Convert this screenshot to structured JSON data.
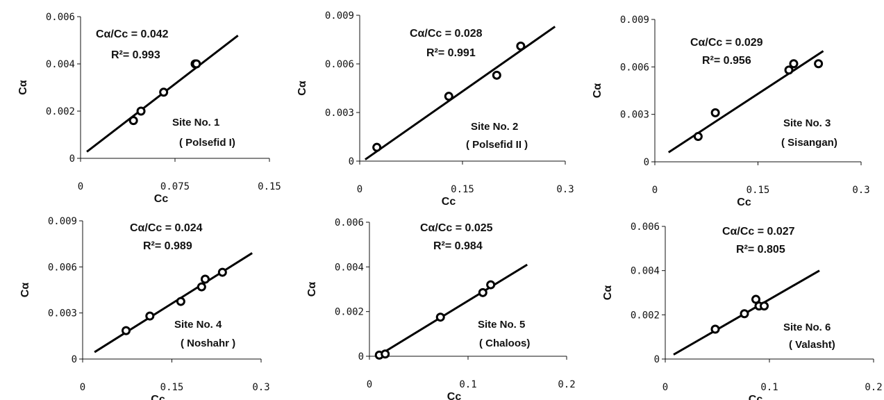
{
  "chart_data": [
    {
      "type": "scatter",
      "site_label": "Site No.  1",
      "site_name": "( Polsefid I)",
      "xlabel": "Cc",
      "ylabel": "Cα",
      "xlim": [
        0,
        0.15
      ],
      "ylim": [
        0,
        0.006
      ],
      "xticks": [
        "0",
        "0.075",
        "0.15"
      ],
      "xtick_values": [
        0,
        0.075,
        0.15
      ],
      "yticks": [
        "0",
        "0.002",
        "0.004",
        "0.006"
      ],
      "ytick_values": [
        0,
        0.002,
        0.004,
        0.006
      ],
      "ratio_label": "Cα/Cc = 0.042",
      "r2_label": "R²= 0.993",
      "points": [
        [
          0.042,
          0.0016
        ],
        [
          0.048,
          0.002
        ],
        [
          0.066,
          0.0028
        ],
        [
          0.091,
          0.004
        ],
        [
          0.092,
          0.004
        ]
      ],
      "fit_line": [
        [
          0.005,
          0.00028
        ],
        [
          0.125,
          0.0052
        ]
      ]
    },
    {
      "type": "scatter",
      "site_label": "Site No. 2",
      "site_name": "( Polsefid II )",
      "xlabel": "Cc",
      "ylabel": "Cα",
      "xlim": [
        0,
        0.3
      ],
      "ylim": [
        0,
        0.009
      ],
      "xticks": [
        "0",
        "0.15",
        "0.3"
      ],
      "xtick_values": [
        0,
        0.15,
        0.3
      ],
      "yticks": [
        "0",
        "0.003",
        "0.006",
        "0.009"
      ],
      "ytick_values": [
        0,
        0.003,
        0.006,
        0.009
      ],
      "ratio_label": "Cα/Cc = 0.028",
      "r2_label": "R²= 0.991",
      "points": [
        [
          0.025,
          0.00085
        ],
        [
          0.13,
          0.004
        ],
        [
          0.2,
          0.0053
        ],
        [
          0.235,
          0.0071
        ]
      ],
      "fit_line": [
        [
          0.008,
          0.0001
        ],
        [
          0.285,
          0.0083
        ]
      ]
    },
    {
      "type": "scatter",
      "site_label": "Site No. 3",
      "site_name": "( Sisangan)",
      "xlabel": "Cc",
      "ylabel": "Cα",
      "xlim": [
        0,
        0.3
      ],
      "ylim": [
        0,
        0.009
      ],
      "xticks": [
        "0",
        "0.15",
        "0.3"
      ],
      "xtick_values": [
        0,
        0.15,
        0.3
      ],
      "yticks": [
        "0",
        "0.003",
        "0.006",
        "0.009"
      ],
      "ytick_values": [
        0,
        0.003,
        0.006,
        0.009
      ],
      "ratio_label": "Cα/Cc = 0.029",
      "r2_label": "R²= 0.956",
      "points": [
        [
          0.063,
          0.0016
        ],
        [
          0.088,
          0.0031
        ],
        [
          0.195,
          0.0058
        ],
        [
          0.202,
          0.0062
        ],
        [
          0.238,
          0.0062
        ]
      ],
      "fit_line": [
        [
          0.02,
          0.0006
        ],
        [
          0.245,
          0.007
        ]
      ]
    },
    {
      "type": "scatter",
      "site_label": "Site No. 4",
      "site_name": "( Noshahr )",
      "xlabel": "Cc",
      "ylabel": "Cα",
      "xlim": [
        0,
        0.3
      ],
      "ylim": [
        0,
        0.009
      ],
      "xticks": [
        "0",
        "0.15",
        "0.3"
      ],
      "xtick_values": [
        0,
        0.15,
        0.3
      ],
      "yticks": [
        "0",
        "0.003",
        "0.006",
        "0.009"
      ],
      "ytick_values": [
        0,
        0.003,
        0.006,
        0.009
      ],
      "ratio_label": "Cα/Cc = 0.024",
      "r2_label": "R²= 0.989",
      "points": [
        [
          0.073,
          0.00185
        ],
        [
          0.113,
          0.0028
        ],
        [
          0.165,
          0.00375
        ],
        [
          0.2,
          0.0047
        ],
        [
          0.206,
          0.0052
        ],
        [
          0.235,
          0.00565
        ]
      ],
      "fit_line": [
        [
          0.02,
          0.00045
        ],
        [
          0.285,
          0.0069
        ]
      ]
    },
    {
      "type": "scatter",
      "site_label": "Site No. 5",
      "site_name": "( Chaloos)",
      "xlabel": "Cc",
      "ylabel": "Cα",
      "xlim": [
        0,
        0.2
      ],
      "ylim": [
        0,
        0.006
      ],
      "xticks": [
        "0",
        "0.1",
        "0.2"
      ],
      "xtick_values": [
        0,
        0.1,
        0.2
      ],
      "yticks": [
        "0",
        "0.002",
        "0.004",
        "0.006"
      ],
      "ytick_values": [
        0,
        0.002,
        0.004,
        0.006
      ],
      "ratio_label": "Cα/Cc = 0.025",
      "r2_label": "R²= 0.984",
      "points": [
        [
          0.01,
          5e-05
        ],
        [
          0.016,
          0.0001
        ],
        [
          0.072,
          0.00175
        ],
        [
          0.115,
          0.00285
        ],
        [
          0.123,
          0.0032
        ]
      ],
      "fit_line": [
        [
          0.008,
          0.0
        ],
        [
          0.16,
          0.0041
        ]
      ]
    },
    {
      "type": "scatter",
      "site_label": "Site No. 6",
      "site_name": "( Valasht)",
      "xlabel": "Cc",
      "ylabel": "Cα",
      "xlim": [
        0,
        0.2
      ],
      "ylim": [
        0,
        0.006
      ],
      "xticks": [
        "0",
        "0.1",
        "0.2"
      ],
      "xtick_values": [
        0,
        0.1,
        0.2
      ],
      "yticks": [
        "0",
        "0.002",
        "0.004",
        "0.006"
      ],
      "ytick_values": [
        0,
        0.002,
        0.004,
        0.006
      ],
      "ratio_label": "Cα/Cc = 0.027",
      "r2_label": "R²= 0.805",
      "points": [
        [
          0.048,
          0.00135
        ],
        [
          0.076,
          0.00205
        ],
        [
          0.087,
          0.0027
        ],
        [
          0.09,
          0.0024
        ],
        [
          0.095,
          0.0024
        ]
      ],
      "fit_line": [
        [
          0.008,
          0.0002
        ],
        [
          0.148,
          0.004
        ]
      ]
    }
  ]
}
